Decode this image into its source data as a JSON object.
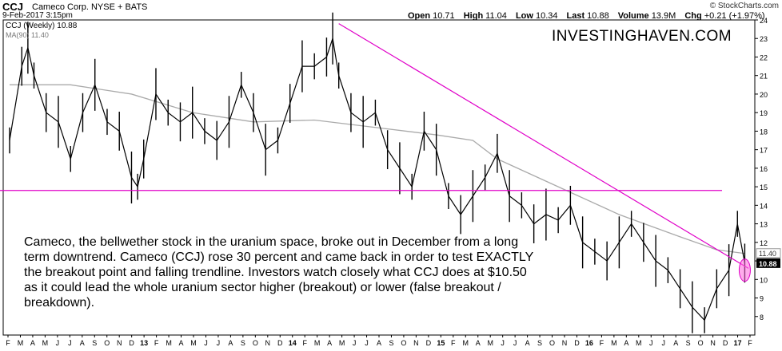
{
  "header": {
    "ticker": "CCJ",
    "company": "Cameco Corp.  NYSE + BATS",
    "date": "9-Feb-2017 3:15pm",
    "brand": "© StockCharts.com",
    "quote": [
      {
        "label": "Open",
        "value": "10.71"
      },
      {
        "label": "High",
        "value": "11.04"
      },
      {
        "label": "Low",
        "value": "10.34"
      },
      {
        "label": "Last",
        "value": "10.88"
      },
      {
        "label": "Volume",
        "value": "13.9M"
      },
      {
        "label": "Chg",
        "value": "+0.21 (+1.97%)"
      }
    ]
  },
  "legend": {
    "price": "CCJ (Weekly) 10.88",
    "ma": "MA(90) 11.40"
  },
  "watermark": "INVESTINGHAVEN.COM",
  "annotation": "Cameco, the bellwether stock in the uranium space, broke out in December from a long term downtrend. Cameco (CCJ) rose 30 percent and came back in order to test EXACTLY the breakout point and falling trendline. Investors watch closely what CCJ does at $10.50 as it could lead the whole uranium sector higher (breakout) or lower (false breakout / breakdown).",
  "chart_data": {
    "type": "line",
    "ylim": [
      7,
      24
    ],
    "y_ticks": [
      8,
      9,
      10,
      11,
      12,
      13,
      14,
      15,
      16,
      17,
      18,
      19,
      20,
      21,
      22,
      23,
      24
    ],
    "x_tick_labels": [
      "F",
      "M",
      "A",
      "M",
      "J",
      "J",
      "A",
      "S",
      "O",
      "N",
      "D",
      "13",
      "F",
      "M",
      "A",
      "M",
      "J",
      "J",
      "A",
      "S",
      "O",
      "N",
      "D",
      "14",
      "F",
      "M",
      "A",
      "M",
      "J",
      "J",
      "A",
      "S",
      "O",
      "N",
      "D",
      "15",
      "F",
      "M",
      "A",
      "M",
      "J",
      "J",
      "A",
      "S",
      "O",
      "N",
      "D",
      "16",
      "F",
      "M",
      "A",
      "M",
      "J",
      "J",
      "A",
      "S",
      "O",
      "N",
      "D",
      "17",
      "F"
    ],
    "x_range": [
      0,
      60.6
    ],
    "series": [
      {
        "values": [
          [
            0,
            17.5
          ],
          [
            1,
            21.5
          ],
          [
            1.5,
            22.5
          ],
          [
            2,
            21
          ],
          [
            3,
            19
          ],
          [
            4,
            18.5
          ],
          [
            5,
            16.5
          ],
          [
            6,
            19
          ],
          [
            7,
            20.5
          ],
          [
            8,
            18.5
          ],
          [
            9,
            18
          ],
          [
            10,
            15.5
          ],
          [
            10.5,
            15
          ],
          [
            11,
            16.5
          ],
          [
            12,
            20
          ],
          [
            13,
            19
          ],
          [
            14,
            18.5
          ],
          [
            15,
            19
          ],
          [
            16,
            18
          ],
          [
            17,
            17.5
          ],
          [
            18,
            18.5
          ],
          [
            19,
            20.5
          ],
          [
            20,
            19
          ],
          [
            21,
            17
          ],
          [
            22,
            17.5
          ],
          [
            23,
            19.5
          ],
          [
            24,
            21.5
          ],
          [
            25,
            21.5
          ],
          [
            26,
            22
          ],
          [
            26.5,
            23
          ],
          [
            27,
            21
          ],
          [
            28,
            19
          ],
          [
            29,
            18.5
          ],
          [
            30,
            19
          ],
          [
            31,
            17
          ],
          [
            32,
            16
          ],
          [
            33,
            15
          ],
          [
            34,
            18
          ],
          [
            35,
            17
          ],
          [
            36,
            14.5
          ],
          [
            37,
            13.5
          ],
          [
            38,
            14.5
          ],
          [
            39,
            15.5
          ],
          [
            40,
            16.8
          ],
          [
            41,
            14.5
          ],
          [
            42,
            14
          ],
          [
            43,
            13
          ],
          [
            44,
            13.5
          ],
          [
            45,
            13.2
          ],
          [
            46,
            14
          ],
          [
            47,
            12
          ],
          [
            48,
            11.5
          ],
          [
            49,
            11
          ],
          [
            50,
            12
          ],
          [
            51,
            13
          ],
          [
            52,
            12
          ],
          [
            53,
            11
          ],
          [
            54,
            10.5
          ],
          [
            55,
            9.5
          ],
          [
            56,
            8.5
          ],
          [
            57,
            7.8
          ],
          [
            58,
            9.5
          ],
          [
            59,
            10.5
          ],
          [
            59.7,
            13
          ],
          [
            60.3,
            10.88
          ]
        ]
      },
      {
        "name": "MA(90)",
        "values": [
          [
            0,
            20.5
          ],
          [
            5,
            20.5
          ],
          [
            10,
            20
          ],
          [
            15,
            19
          ],
          [
            20,
            18.5
          ],
          [
            25,
            18.6
          ],
          [
            30,
            18.2
          ],
          [
            35,
            17.8
          ],
          [
            38,
            17.5
          ],
          [
            40,
            16.5
          ],
          [
            45,
            15
          ],
          [
            50,
            13.5
          ],
          [
            55,
            12.3
          ],
          [
            58,
            11.6
          ],
          [
            60.3,
            11.4
          ]
        ]
      }
    ],
    "annotations": [
      "falling trendline from 2014 high",
      "horizontal support line at 14.8"
    ]
  }
}
